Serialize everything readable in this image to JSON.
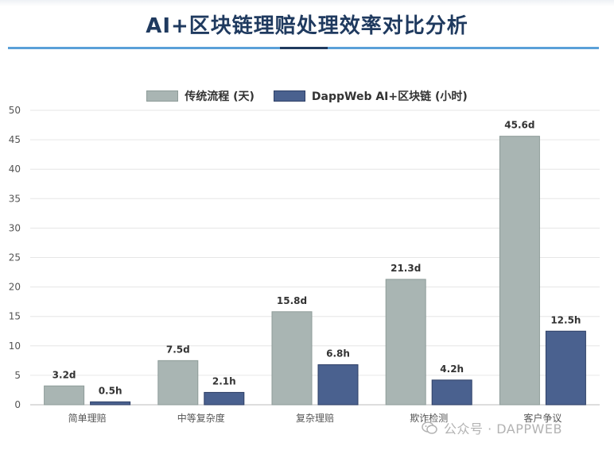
{
  "title": "AI+区块链理赔处理效率对比分析",
  "colors": {
    "traditional": "#a9b5b3",
    "traditional_border": "#8e9c99",
    "ai": "#4a618f",
    "ai_border": "#2d3f66",
    "title": "#1f3a5f"
  },
  "watermark": {
    "label": "公众号 · DAPPWEB",
    "icon": "wechat-icon"
  },
  "chart_data": {
    "type": "bar",
    "title": "",
    "xlabel": "",
    "ylabel": "",
    "ylim": [
      0,
      50
    ],
    "yticks": [
      0,
      5,
      10,
      15,
      20,
      25,
      30,
      35,
      40,
      45,
      50
    ],
    "grid": true,
    "legend_position": "top-center",
    "categories": [
      "简单理赔",
      "中等复杂度",
      "复杂理赔",
      "欺诈检测",
      "客户争议"
    ],
    "series": [
      {
        "name": "传统流程 (天)",
        "values": [
          3.2,
          7.5,
          15.8,
          21.3,
          45.6
        ],
        "labels": [
          "3.2d",
          "7.5d",
          "15.8d",
          "21.3d",
          "45.6d"
        ]
      },
      {
        "name": "DappWeb AI+区块链 (小时)",
        "values": [
          0.5,
          2.1,
          6.8,
          4.2,
          12.5
        ],
        "labels": [
          "0.5h",
          "2.1h",
          "6.8h",
          "4.2h",
          "12.5h"
        ]
      }
    ]
  }
}
